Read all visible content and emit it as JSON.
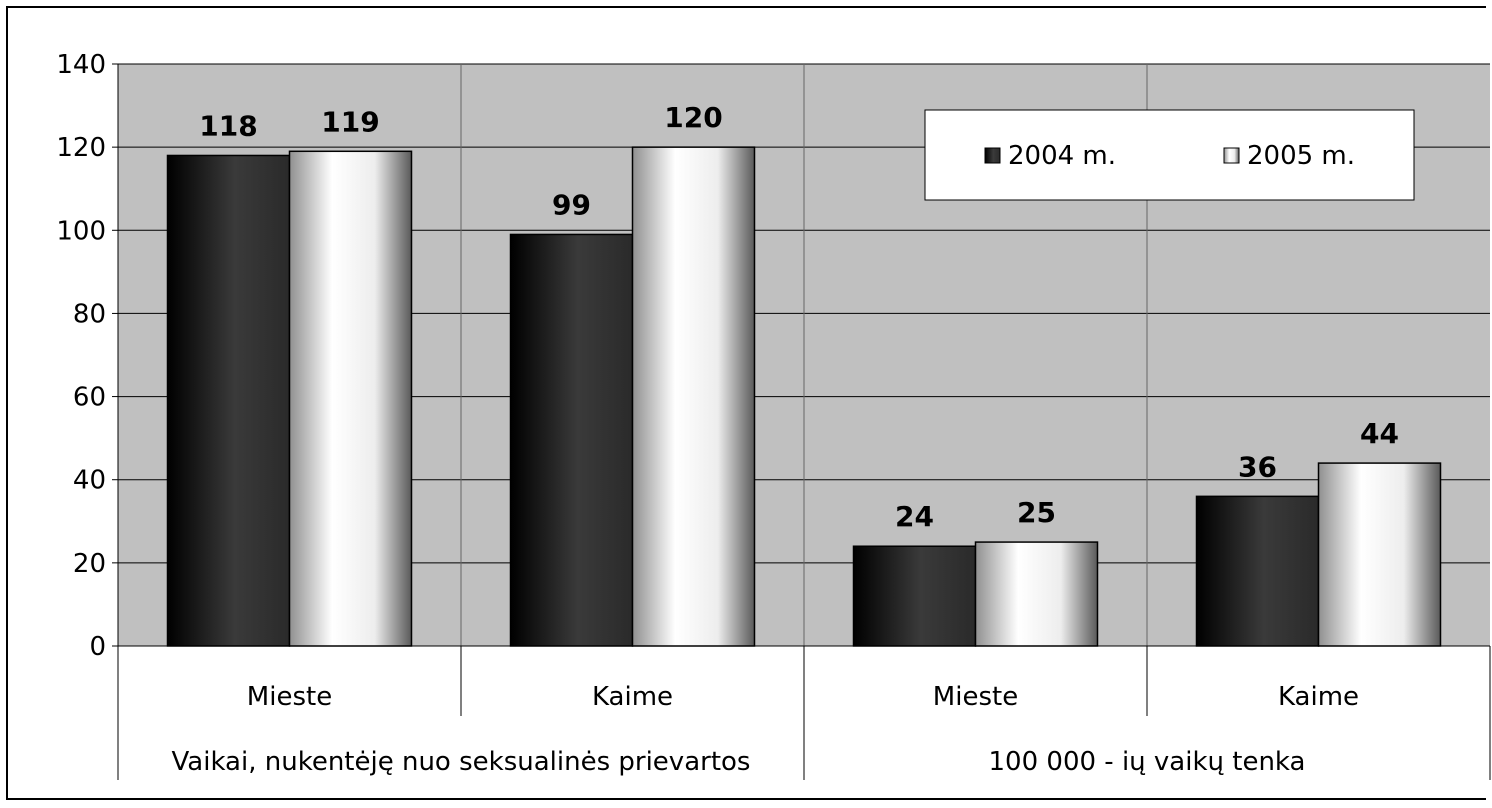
{
  "chart_data": {
    "type": "bar",
    "categories": [
      "Mieste",
      "Kaime",
      "Mieste",
      "Kaime"
    ],
    "groups": [
      {
        "label": "Vaikai, nukentėję nuo seksualinės prievartos",
        "categories": [
          "Mieste",
          "Kaime"
        ]
      },
      {
        "label": "100 000 - ių vaikų tenka",
        "categories": [
          "Mieste",
          "Kaime"
        ]
      }
    ],
    "series": [
      {
        "name": "2004 m.",
        "values": [
          118,
          99,
          24,
          36
        ]
      },
      {
        "name": "2005 m.",
        "values": [
          119,
          120,
          25,
          44
        ]
      }
    ],
    "data_labels": [
      [
        "118",
        "99",
        "24",
        "36"
      ],
      [
        "119",
        "120",
        "25",
        "44"
      ]
    ],
    "yticks": [
      "0",
      "20",
      "40",
      "60",
      "80",
      "100",
      "120",
      "140"
    ],
    "ylim": [
      0,
      140
    ],
    "grid": true,
    "legend_position": "top-right",
    "colors": {
      "plot_background": "#c0c0c0",
      "series_dark": "#1c1c1c",
      "series_light": "#f4f4f4",
      "axis": "#000000"
    }
  }
}
